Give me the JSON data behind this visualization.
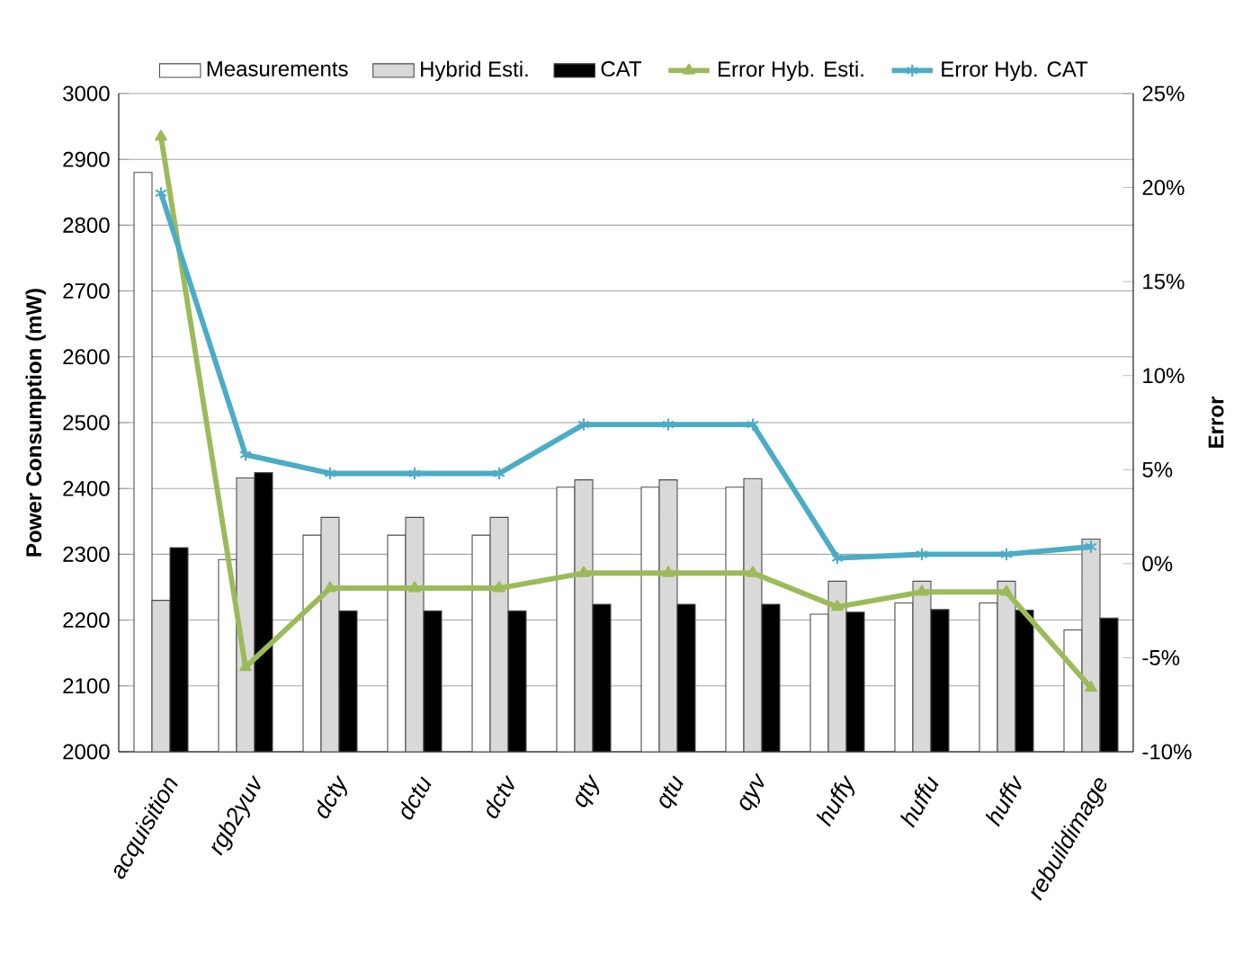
{
  "chart_data": {
    "type": "bar",
    "ylabel": "Power Consumption (mW)",
    "y2label": "Error",
    "categories": [
      "acquisition",
      "rgb2yuv",
      "dcty",
      "dctu",
      "dctv",
      "qty",
      "qtu",
      "qyv",
      "huffy",
      "huffu",
      "huffv",
      "rebuildimage"
    ],
    "series": [
      {
        "name": "Measurements",
        "color": "#ffffff",
        "values": [
          2880,
          2292,
          2329,
          2329,
          2329,
          2402,
          2402,
          2402,
          2209,
          2226,
          2226,
          2185
        ]
      },
      {
        "name": "Hybrid Esti.",
        "color": "#d9d9d9",
        "values": [
          2230,
          2416,
          2356,
          2356,
          2356,
          2413,
          2413,
          2415,
          2259,
          2259,
          2259,
          2323
        ]
      },
      {
        "name": "CAT",
        "color": "#000000",
        "values": [
          2310,
          2424,
          2214,
          2214,
          2214,
          2224,
          2224,
          2224,
          2212,
          2216,
          2215,
          2203
        ]
      },
      {
        "name": "Error Hyb. Esti.",
        "type": "line",
        "axis": "y2",
        "marker": "triangle",
        "color": "#9bbb59",
        "values": [
          22.7,
          -5.5,
          -1.3,
          -1.3,
          -1.3,
          -0.5,
          -0.5,
          -0.5,
          -2.3,
          -1.5,
          -1.5,
          -6.6
        ]
      },
      {
        "name": "Error Hyb. CAT",
        "type": "line",
        "axis": "y2",
        "marker": "cross",
        "color": "#4bacc6",
        "values": [
          19.7,
          5.8,
          4.8,
          4.8,
          4.8,
          7.4,
          7.4,
          7.4,
          0.3,
          0.5,
          0.5,
          0.9
        ]
      }
    ],
    "ylim": [
      2000,
      3000
    ],
    "yticks": [
      2000,
      2100,
      2200,
      2300,
      2400,
      2500,
      2600,
      2700,
      2800,
      2900,
      3000
    ],
    "y2lim": [
      -10,
      25
    ],
    "y2ticks": [
      {
        "value": -10,
        "label": "-10%"
      },
      {
        "value": -5,
        "label": "-5%"
      },
      {
        "value": 0,
        "label": "0%"
      },
      {
        "value": 5,
        "label": "5%"
      },
      {
        "value": 10,
        "label": "10%"
      },
      {
        "value": 15,
        "label": "15%"
      },
      {
        "value": 20,
        "label": "20%"
      },
      {
        "value": 25,
        "label": "25%"
      }
    ],
    "grid": "y",
    "legend": "top"
  }
}
